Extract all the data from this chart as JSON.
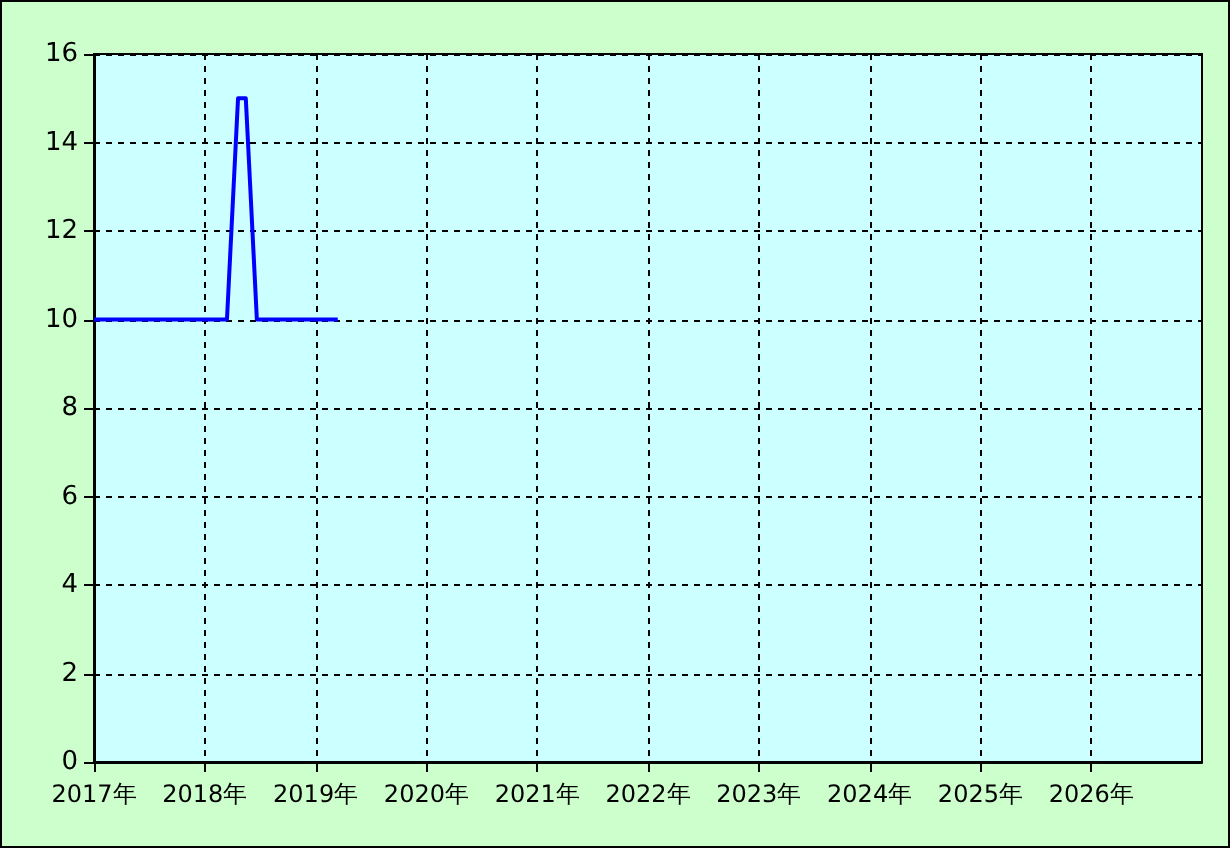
{
  "chart_data": {
    "type": "line",
    "x": [
      2017,
      2018.2,
      2018.22,
      2018.24,
      2018.26,
      2018.28,
      2018.3,
      2018.37,
      2018.39,
      2018.41,
      2018.43,
      2018.45,
      2018.47,
      2019.2
    ],
    "series": [
      {
        "color": "#0000ff",
        "values": [
          10,
          10,
          11,
          12,
          13,
          14,
          15,
          15,
          14,
          13,
          12,
          11,
          10,
          10
        ]
      }
    ],
    "xlim": [
      2017,
      2027
    ],
    "xticks": [
      {
        "value": 2017,
        "label": "2017年"
      },
      {
        "value": 2018,
        "label": "2018年"
      },
      {
        "value": 2019,
        "label": "2019年"
      },
      {
        "value": 2020,
        "label": "2020年"
      },
      {
        "value": 2021,
        "label": "2021年"
      },
      {
        "value": 2022,
        "label": "2022年"
      },
      {
        "value": 2023,
        "label": "2023年"
      },
      {
        "value": 2024,
        "label": "2024年"
      },
      {
        "value": 2025,
        "label": "2025年"
      },
      {
        "value": 2026,
        "label": "2026年"
      }
    ],
    "ylim": [
      0,
      16
    ],
    "yticks": [
      0,
      2,
      4,
      6,
      8,
      10,
      12,
      14,
      16
    ],
    "grid": true,
    "marker": "none",
    "line_style": "solid"
  }
}
